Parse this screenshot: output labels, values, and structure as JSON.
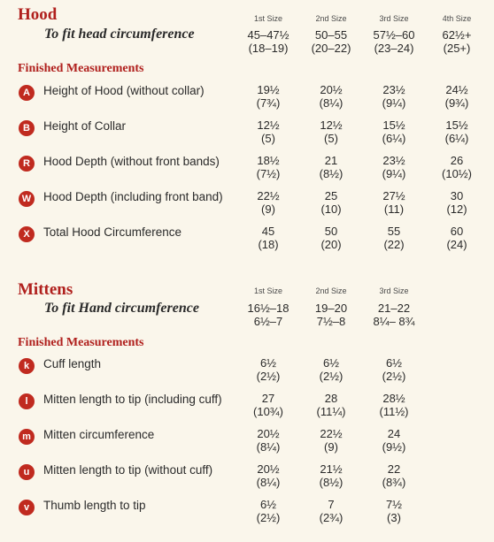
{
  "hood": {
    "title": "Hood",
    "fit_label": "To fit head circumference",
    "sizes": [
      "1st Size",
      "2nd Size",
      "3rd Size",
      "4th Size"
    ],
    "fit": [
      {
        "a": "45–47½",
        "b": "(18–19)"
      },
      {
        "a": "50–55",
        "b": "(20–22)"
      },
      {
        "a": "57½–60",
        "b": "(23–24)"
      },
      {
        "a": "62½+",
        "b": "(25+)"
      }
    ],
    "section_label": "Finished Measurements",
    "rows": [
      {
        "badge": "A",
        "label": "Height of Hood (without collar)",
        "values": [
          {
            "a": "19½",
            "b": "(7¾)"
          },
          {
            "a": "20½",
            "b": "(8¼)"
          },
          {
            "a": "23½",
            "b": "(9¼)"
          },
          {
            "a": "24½",
            "b": "(9¾)"
          }
        ]
      },
      {
        "badge": "B",
        "label": "Height of Collar",
        "values": [
          {
            "a": "12½",
            "b": "(5)"
          },
          {
            "a": "12½",
            "b": "(5)"
          },
          {
            "a": "15½",
            "b": "(6¼)"
          },
          {
            "a": "15½",
            "b": "(6¼)"
          }
        ]
      },
      {
        "badge": "R",
        "label": "Hood Depth (without front bands)",
        "values": [
          {
            "a": "18½",
            "b": "(7½)"
          },
          {
            "a": "21",
            "b": "(8½)"
          },
          {
            "a": "23½",
            "b": "(9¼)"
          },
          {
            "a": "26",
            "b": "(10½)"
          }
        ]
      },
      {
        "badge": "W",
        "label": "Hood Depth (including front band)",
        "values": [
          {
            "a": "22½",
            "b": "(9)"
          },
          {
            "a": "25",
            "b": "(10)"
          },
          {
            "a": "27½",
            "b": "(11)"
          },
          {
            "a": "30",
            "b": "(12)"
          }
        ]
      },
      {
        "badge": "X",
        "label": "Total Hood Circumference",
        "values": [
          {
            "a": "45",
            "b": "(18)"
          },
          {
            "a": "50",
            "b": "(20)"
          },
          {
            "a": "55",
            "b": "(22)"
          },
          {
            "a": "60",
            "b": "(24)"
          }
        ]
      }
    ]
  },
  "mittens": {
    "title": "Mittens",
    "fit_label": "To fit Hand circumference",
    "sizes": [
      "1st Size",
      "2nd Size",
      "3rd Size"
    ],
    "fit": [
      {
        "a": "16½–18",
        "b": "6½–7"
      },
      {
        "a": "19–20",
        "b": "7½–8"
      },
      {
        "a": "21–22",
        "b": "8¼– 8¾"
      }
    ],
    "section_label": "Finished Measurements",
    "rows": [
      {
        "badge": "k",
        "label": "Cuff length",
        "values": [
          {
            "a": "6½",
            "b": "(2½)"
          },
          {
            "a": "6½",
            "b": "(2½)"
          },
          {
            "a": "6½",
            "b": "(2½)"
          }
        ]
      },
      {
        "badge": "l",
        "label": "Mitten length to tip (including cuff)",
        "values": [
          {
            "a": "27",
            "b": "(10¾)"
          },
          {
            "a": "28",
            "b": "(11¼)"
          },
          {
            "a": "28½",
            "b": "(11½)"
          }
        ]
      },
      {
        "badge": "m",
        "label": "Mitten circumference",
        "values": [
          {
            "a": "20½",
            "b": "(8¼)"
          },
          {
            "a": "22½",
            "b": "(9)"
          },
          {
            "a": "24",
            "b": "(9½)"
          }
        ]
      },
      {
        "badge": "u",
        "label": "Mitten length to tip (without cuff)",
        "values": [
          {
            "a": "20½",
            "b": "(8¼)"
          },
          {
            "a": "21½",
            "b": "(8½)"
          },
          {
            "a": "22",
            "b": "(8¾)"
          }
        ]
      },
      {
        "badge": "v",
        "label": "Thumb length to tip",
        "values": [
          {
            "a": "6½",
            "b": "(2½)"
          },
          {
            "a": "7",
            "b": "(2¾)"
          },
          {
            "a": "7½",
            "b": "(3)"
          }
        ]
      }
    ]
  }
}
